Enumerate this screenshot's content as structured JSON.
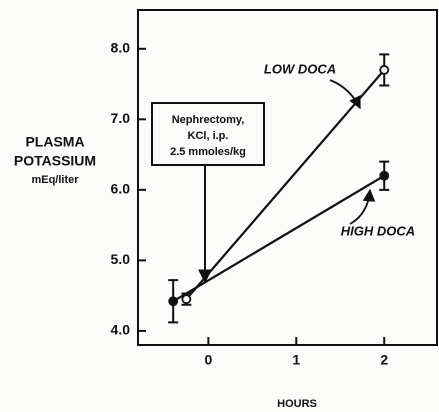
{
  "chart_data": {
    "type": "line",
    "ylabel": [
      "PLASMA",
      "POTASSIUM",
      "mEq/liter"
    ],
    "xlabel": "HOURS",
    "xlim": [
      -0.8,
      2.6
    ],
    "xticks": [
      0,
      1,
      2
    ],
    "ylim": [
      3.8,
      8.55
    ],
    "yticks": [
      {
        "value": 4,
        "label": "4.0"
      },
      {
        "value": 5,
        "label": "5.0"
      },
      {
        "value": 6,
        "label": "6.0"
      },
      {
        "value": 7,
        "label": "7.0"
      },
      {
        "value": 8,
        "label": "8.0"
      }
    ],
    "series": [
      {
        "name": "LOW DOCA",
        "color": "#111111",
        "marker": "open",
        "x": [
          -0.25,
          2
        ],
        "values": [
          4.45,
          7.7
        ],
        "errors": [
          0.08,
          0.22
        ]
      },
      {
        "name": "HIGH DOCA",
        "color": "#111111",
        "marker": "filled",
        "x": [
          -0.4,
          2
        ],
        "values": [
          4.42,
          6.2
        ],
        "errors": [
          0.3,
          0.2
        ]
      }
    ],
    "annotation": [
      "Nephrectomy,",
      "KCl, i.p.",
      "2.5 mmoles/kg"
    ]
  }
}
